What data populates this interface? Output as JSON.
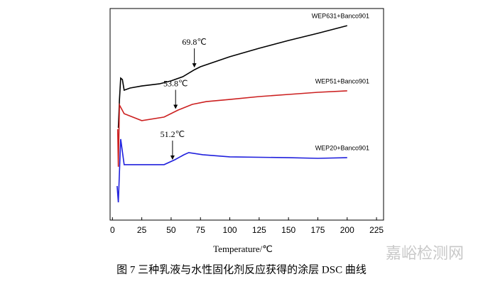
{
  "chart_data": {
    "type": "line",
    "x_label": "Temperature/℃",
    "caption": "图 7 三种乳液与水性固化剂反应获得的涂层 DSC 曲线",
    "watermark": "嘉峪检测网",
    "xlim": [
      -2,
      231
    ],
    "ylim": [
      0,
      100
    ],
    "xticks": [
      0,
      25,
      50,
      75,
      100,
      125,
      150,
      175,
      200,
      225
    ],
    "series": [
      {
        "name": "WEP631+Banco901",
        "color": "#000000",
        "x": [
          5,
          6,
          7,
          8.5,
          10,
          15,
          25,
          40,
          50,
          60,
          70,
          75,
          100,
          125,
          150,
          175,
          200
        ],
        "values": [
          43.6,
          57.0,
          67.1,
          66.4,
          61.4,
          62.4,
          63.4,
          64.4,
          65.8,
          67.8,
          71.1,
          72.5,
          77.2,
          81.2,
          84.9,
          88.3,
          91.9
        ]
      },
      {
        "name": "WEP51+Banco901",
        "color": "#cc2020",
        "x": [
          4.5,
          5,
          6,
          10,
          25,
          44,
          56,
          68,
          80,
          100,
          125,
          150,
          175,
          200
        ],
        "values": [
          43.0,
          25.2,
          54.4,
          50.3,
          47.0,
          48.7,
          52.0,
          54.7,
          56.0,
          57.0,
          58.4,
          59.4,
          60.4,
          61.1
        ]
      },
      {
        "name": "WEP20+Banco901",
        "color": "#2020dd",
        "x": [
          4,
          5,
          7,
          10,
          20,
          44,
          53,
          61,
          65,
          77,
          100,
          150,
          175,
          200
        ],
        "values": [
          16.1,
          8.4,
          38.3,
          26.2,
          26.2,
          26.2,
          28.5,
          30.9,
          31.9,
          30.9,
          29.9,
          29.5,
          29.2,
          29.5
        ]
      }
    ],
    "annotations": [
      {
        "label": "69.8℃",
        "x": 69.8,
        "y": 71.1
      },
      {
        "label": "53.8℃",
        "x": 53.8,
        "y": 51.5
      },
      {
        "label": "51.2℃",
        "x": 51.2,
        "y": 27.5
      }
    ]
  }
}
